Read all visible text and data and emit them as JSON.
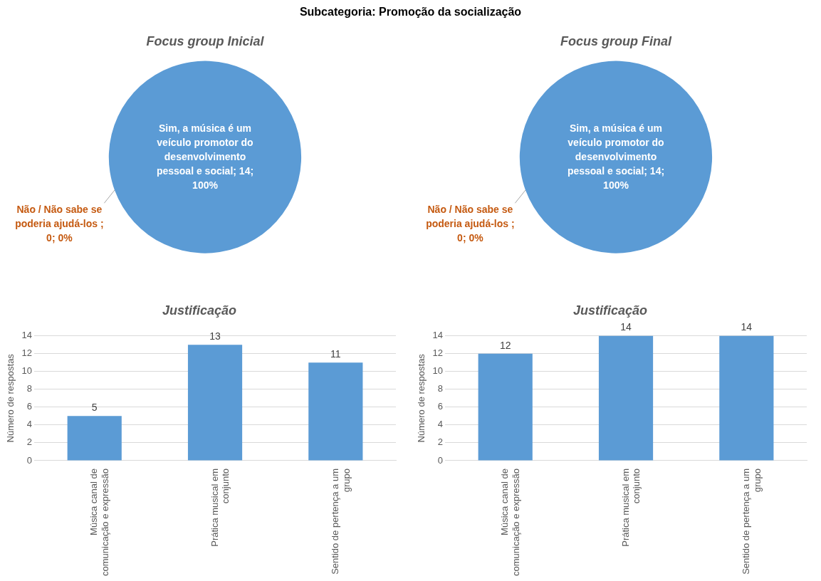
{
  "chart_data": [
    {
      "type": "other",
      "title": "Subcategoria: Promoção da socialização"
    },
    {
      "type": "pie",
      "title": "Focus group Inicial",
      "categories": [
        "Sim, a música é um veículo promotor do desenvolvimento pessoal e social",
        "Não / Não sabe se poderia ajudá-los "
      ],
      "values": [
        14,
        0
      ],
      "value_labels": [
        "14; 100%",
        "0; 0%"
      ],
      "colors": [
        "#5b9bd5",
        "#c55a11"
      ]
    },
    {
      "type": "pie",
      "title": "Focus group Final",
      "categories": [
        "Sim, a música é um veículo promotor do desenvolvimento pessoal e social",
        "Não / Não sabe se poderia ajudá-los "
      ],
      "values": [
        14,
        0
      ],
      "value_labels": [
        "14; 100%",
        "0; 0%"
      ],
      "colors": [
        "#5b9bd5",
        "#c55a11"
      ]
    },
    {
      "type": "bar",
      "title": "Justificação",
      "ylabel": "Número de respostas",
      "categories": [
        "Música canal de comunicação e expressão",
        "Prática musical em conjunto",
        "Sentido de pertença a um grupo"
      ],
      "values": [
        5,
        13,
        11
      ],
      "color": "#5b9bd5",
      "ylim": [
        0,
        14
      ],
      "yticks": [
        0,
        2,
        4,
        6,
        8,
        10,
        12,
        14
      ],
      "grid": "y",
      "data_labels": true
    },
    {
      "type": "bar",
      "title": "Justificação",
      "ylabel": "Número de respostas",
      "categories": [
        "Música canal de comunicação e expressão",
        "Prática musical em conjunto",
        "Sentido de pertença a um grupo"
      ],
      "values": [
        12,
        14,
        14
      ],
      "color": "#5b9bd5",
      "ylim": [
        0,
        14
      ],
      "yticks": [
        0,
        2,
        4,
        6,
        8,
        10,
        12,
        14
      ],
      "grid": "y",
      "data_labels": true
    }
  ]
}
